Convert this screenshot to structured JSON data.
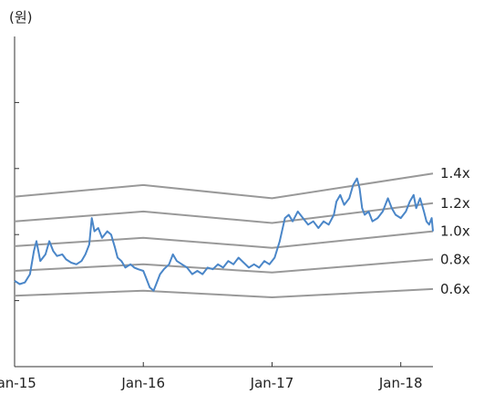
{
  "chart_data": {
    "type": "line",
    "unit_label": "(원)",
    "x_tick_labels": [
      "Jan-15",
      "Jan-16",
      "Jan-17",
      "Jan-18"
    ],
    "x_ticks": [
      2015.0,
      2016.0,
      2017.0,
      2018.0
    ],
    "xlim": [
      2015.0,
      2018.25
    ],
    "ylim": [
      0,
      100
    ],
    "y_tick_values": [
      20,
      40,
      60,
      80
    ],
    "grid": false,
    "bands": [
      {
        "name": "0.6x",
        "color": "#999999",
        "points": [
          [
            2015.0,
            21.5
          ],
          [
            2016.0,
            23.0
          ],
          [
            2017.0,
            21.0
          ],
          [
            2018.25,
            23.5
          ]
        ]
      },
      {
        "name": "0.8x",
        "color": "#999999",
        "points": [
          [
            2015.0,
            29.0
          ],
          [
            2016.0,
            31.0
          ],
          [
            2017.0,
            28.5
          ],
          [
            2018.25,
            32.5
          ]
        ]
      },
      {
        "name": "1.0x",
        "color": "#999999",
        "points": [
          [
            2015.0,
            36.5
          ],
          [
            2016.0,
            39.0
          ],
          [
            2017.0,
            36.0
          ],
          [
            2018.25,
            41.0
          ]
        ]
      },
      {
        "name": "1.2x",
        "color": "#999999",
        "points": [
          [
            2015.0,
            44.0
          ],
          [
            2016.0,
            47.0
          ],
          [
            2017.0,
            43.5
          ],
          [
            2018.25,
            49.5
          ]
        ]
      },
      {
        "name": "1.4x",
        "color": "#999999",
        "points": [
          [
            2015.0,
            51.5
          ],
          [
            2016.0,
            55.0
          ],
          [
            2017.0,
            51.0
          ],
          [
            2018.25,
            58.5
          ]
        ]
      }
    ],
    "series": [
      {
        "color": "#4a86c8",
        "points": [
          [
            2015.0,
            26
          ],
          [
            2015.04,
            25
          ],
          [
            2015.08,
            25.5
          ],
          [
            2015.12,
            28
          ],
          [
            2015.15,
            35
          ],
          [
            2015.17,
            38
          ],
          [
            2015.2,
            32
          ],
          [
            2015.24,
            34
          ],
          [
            2015.27,
            38
          ],
          [
            2015.3,
            35
          ],
          [
            2015.33,
            33.5
          ],
          [
            2015.37,
            34
          ],
          [
            2015.4,
            32.5
          ],
          [
            2015.44,
            31.5
          ],
          [
            2015.48,
            31
          ],
          [
            2015.52,
            32
          ],
          [
            2015.55,
            34
          ],
          [
            2015.58,
            37
          ],
          [
            2015.6,
            45
          ],
          [
            2015.62,
            41
          ],
          [
            2015.65,
            42
          ],
          [
            2015.68,
            39
          ],
          [
            2015.72,
            41
          ],
          [
            2015.75,
            40
          ],
          [
            2015.78,
            36
          ],
          [
            2015.8,
            33
          ],
          [
            2015.83,
            32
          ],
          [
            2015.86,
            30
          ],
          [
            2015.9,
            31
          ],
          [
            2015.93,
            30
          ],
          [
            2015.96,
            29.5
          ],
          [
            2016.0,
            29
          ],
          [
            2016.02,
            27
          ],
          [
            2016.05,
            24
          ],
          [
            2016.08,
            23
          ],
          [
            2016.1,
            25
          ],
          [
            2016.13,
            28
          ],
          [
            2016.16,
            29.5
          ],
          [
            2016.2,
            31
          ],
          [
            2016.23,
            34
          ],
          [
            2016.26,
            32
          ],
          [
            2016.3,
            31
          ],
          [
            2016.34,
            30
          ],
          [
            2016.38,
            28
          ],
          [
            2016.42,
            29
          ],
          [
            2016.46,
            28
          ],
          [
            2016.5,
            30
          ],
          [
            2016.54,
            29.5
          ],
          [
            2016.58,
            31
          ],
          [
            2016.62,
            30
          ],
          [
            2016.66,
            32
          ],
          [
            2016.7,
            31
          ],
          [
            2016.74,
            33
          ],
          [
            2016.78,
            31.5
          ],
          [
            2016.82,
            30
          ],
          [
            2016.86,
            31
          ],
          [
            2016.9,
            30
          ],
          [
            2016.94,
            32
          ],
          [
            2016.98,
            31
          ],
          [
            2017.02,
            33
          ],
          [
            2017.06,
            38
          ],
          [
            2017.1,
            45
          ],
          [
            2017.13,
            46
          ],
          [
            2017.16,
            44
          ],
          [
            2017.2,
            47
          ],
          [
            2017.24,
            45
          ],
          [
            2017.28,
            43
          ],
          [
            2017.32,
            44
          ],
          [
            2017.36,
            42
          ],
          [
            2017.4,
            44
          ],
          [
            2017.44,
            43
          ],
          [
            2017.48,
            46
          ],
          [
            2017.5,
            50
          ],
          [
            2017.53,
            52
          ],
          [
            2017.56,
            49
          ],
          [
            2017.6,
            51
          ],
          [
            2017.63,
            55
          ],
          [
            2017.66,
            57
          ],
          [
            2017.68,
            54
          ],
          [
            2017.7,
            48
          ],
          [
            2017.72,
            46
          ],
          [
            2017.75,
            47
          ],
          [
            2017.78,
            44
          ],
          [
            2017.82,
            45
          ],
          [
            2017.86,
            47
          ],
          [
            2017.9,
            51
          ],
          [
            2017.93,
            48
          ],
          [
            2017.96,
            46
          ],
          [
            2018.0,
            45
          ],
          [
            2018.04,
            47
          ],
          [
            2018.07,
            50
          ],
          [
            2018.1,
            52
          ],
          [
            2018.12,
            48
          ],
          [
            2018.15,
            51
          ],
          [
            2018.18,
            47
          ],
          [
            2018.2,
            44
          ],
          [
            2018.22,
            43
          ],
          [
            2018.24,
            45
          ],
          [
            2018.25,
            41
          ]
        ]
      }
    ]
  }
}
